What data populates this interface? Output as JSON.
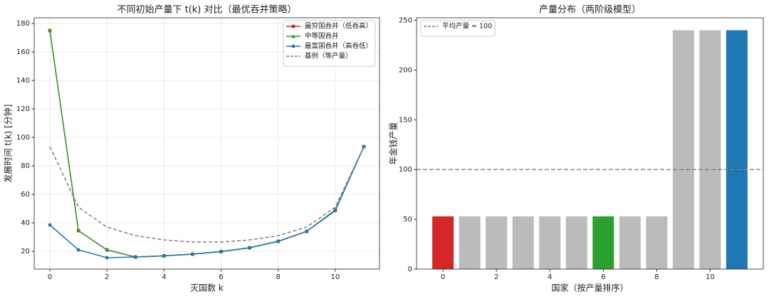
{
  "chart_data": [
    {
      "type": "line",
      "title": "不同初始产量下 t(k) 对比（最优吞并策略）",
      "x_label": "灭国数 k",
      "y_label": "发展时间 t(k) [分钟]",
      "x": [
        0,
        1,
        2,
        3,
        4,
        5,
        6,
        7,
        8,
        9,
        10,
        11
      ],
      "series": [
        {
          "name": "最穷国吞并（低吞高）",
          "color": "#d62728",
          "marker": "square",
          "values": [
            175,
            34.5,
            21,
            16,
            16.8,
            18,
            19.8,
            22.5,
            27,
            34,
            49,
            93.5
          ]
        },
        {
          "name": "中等国吞并",
          "color": "#2ca02c",
          "marker": "triangle",
          "values": [
            175,
            34.5,
            21,
            16,
            16.8,
            18,
            19.8,
            22.5,
            27,
            34,
            49,
            93.5
          ]
        },
        {
          "name": "最富国吞并（高吞低）",
          "color": "#1f77b4",
          "marker": "circle",
          "values": [
            38.5,
            21,
            15.5,
            16,
            16.8,
            18,
            19.8,
            22.5,
            27,
            34,
            48.5,
            93.5
          ]
        },
        {
          "name": "基例（等产量）",
          "color": "#808080",
          "dashed": true,
          "values": [
            93.5,
            51,
            37,
            31,
            28,
            26.5,
            26.5,
            28,
            31,
            37,
            51,
            93.5
          ]
        }
      ],
      "xlim": [
        -0.55,
        11.55
      ],
      "xticks": [
        0,
        2,
        4,
        6,
        8,
        10
      ],
      "ylim": [
        7.5,
        184
      ],
      "yticks": [
        20,
        40,
        60,
        80,
        100,
        120,
        140,
        160,
        180
      ],
      "grid": true,
      "legend": "upper right"
    },
    {
      "type": "bar",
      "title": "产量分布（两阶级模型）",
      "x_label": "国家（按产量排序）",
      "y_label": "年金钱产量",
      "x": [
        0,
        1,
        2,
        3,
        4,
        5,
        6,
        7,
        8,
        9,
        10,
        11
      ],
      "values": [
        53,
        53,
        53,
        53,
        53,
        53,
        53,
        53,
        53,
        240,
        240,
        240
      ],
      "colors": [
        "#d62728",
        "#bbbbbb",
        "#bbbbbb",
        "#bbbbbb",
        "#bbbbbb",
        "#bbbbbb",
        "#2ca02c",
        "#bbbbbb",
        "#bbbbbb",
        "#bbbbbb",
        "#bbbbbb",
        "#1f77b4"
      ],
      "hline": {
        "value": 100,
        "label": "平均产量 = 100",
        "color": "#808080"
      },
      "xlim": [
        -0.99,
        11.99
      ],
      "xticks": [
        0,
        2,
        4,
        6,
        8,
        10
      ],
      "ylim": [
        0,
        252.5
      ],
      "yticks": [
        0,
        50,
        100,
        150,
        200,
        250
      ],
      "grid": false,
      "legend": "upper left"
    }
  ]
}
